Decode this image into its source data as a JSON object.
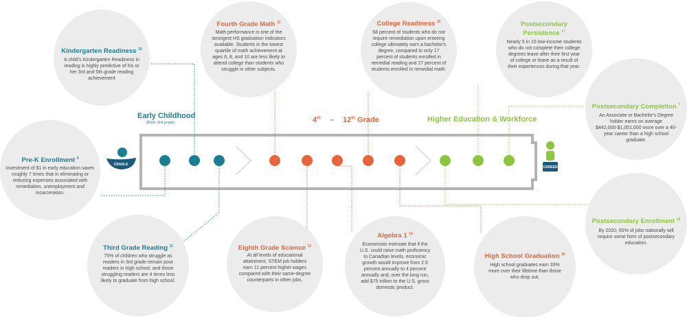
{
  "stages": {
    "early": {
      "label": "Early Childhood",
      "sub": "(Birth–3rd grade)"
    },
    "k12": {
      "part1": "4",
      "sup1": "th",
      "dash": "–",
      "part2": "12",
      "sup2": "th",
      "part3": " Grade"
    },
    "higher": {
      "label": "Higher Education & Workforce"
    }
  },
  "icons": {
    "start": "cradle-icon",
    "end": "career-icon",
    "start_label": "CRADLE",
    "end_label": "CAREER"
  },
  "colors": {
    "teal": "#1a7f94",
    "orange": "#e8643a",
    "green": "#8cc63e",
    "bubble": "#ececec",
    "track": "#b3b3b3"
  },
  "bubbles": {
    "prek": {
      "title": "Pre-K Enrollment",
      "ref": "9",
      "body": "Investment of $1 in early education saves roughly 7 times that in eliminating or reducing expenses associated with remediation, unemployment and incarceration."
    },
    "kinder": {
      "title": "Kindergarten Readiness",
      "ref": "10",
      "body": "A child's Kindergarten Readiness in reading is highly predictive of his or her 3rd and 5th grade reading achievement"
    },
    "third": {
      "title": "Third Grade Reading",
      "ref": "11",
      "body": "75% of children who struggle as readers in 3rd grade remain poor readers in high school, and those struggling readers are 4 times less likely to graduate from high school."
    },
    "fourth": {
      "title": "Fourth Grade Math",
      "ref": "12",
      "body": "Math performance is one of the strongest HS graduation indicators available. Students in the lowest quartile of math achievement at ages 6, 8, and 10 are less likely to attend college than students who struggle in other subjects."
    },
    "eighth": {
      "title": "Eighth Grade Science",
      "ref": "13",
      "body": "At all levels of educational attainment, STEM job holders earn 11 percent higher wages compared with their same-degree counterparts in other jobs."
    },
    "algebra": {
      "title": "Algebra 1",
      "ref": "14",
      "body": "Economists estimate that if the U.S. could raise math proficiency to Canadian levels, economic growth would improve from 2.5 percent annually to 4 percent annually and, over the long run, add $75 trillion to the U.S. gross domestic product."
    },
    "college": {
      "title": "College Readiness",
      "ref": "15",
      "body": "58 percent of students who do not require remediation upon entering college ultimately earn a bachelor's degree, compared to only 17 percent of students enrolled in remedial reading and 27 percent of students enrolled in remedial math."
    },
    "hsgrad": {
      "title": "High School Graduation",
      "ref": "16",
      "body": "High school graduates earn 33% more over their lifetime than those who drop out."
    },
    "persist": {
      "title": "Postsecondary Persistence",
      "ref": "17",
      "body": "Nearly 5 in 10 low-income students who do not complete their college degrees leave after their first year of college or leave as a result of their experiences during that year."
    },
    "complete": {
      "title": "Postsecondary Completion",
      "ref": "7",
      "body": "An Associate or Bachelor's Degree holder earns on average $442,000-$1,051,000 more over a 40-year career than a high school graduate."
    },
    "enroll": {
      "title": "Postsecondary Enrollment",
      "ref": "18",
      "body": "By 2020, 65% of jobs nationally will require some form of postsecondary education."
    }
  }
}
